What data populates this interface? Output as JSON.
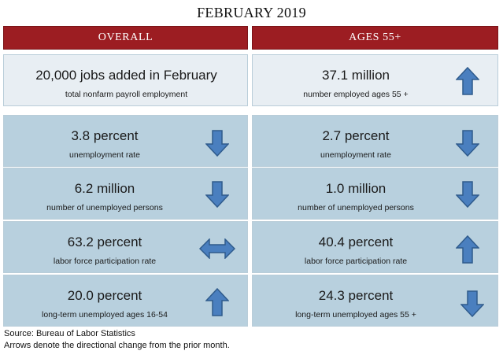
{
  "title": "FEBRUARY 2019",
  "headers": {
    "overall": "OVERALL",
    "ages55": "AGES 55+"
  },
  "colors": {
    "header_red": "#9c1d22",
    "arrow_blue": "#4a7fbf",
    "arrow_stroke": "#2f5b8c",
    "card_light": "#e8eef3",
    "card_blue": "#b8d0de"
  },
  "rows": [
    {
      "overall": {
        "value": "20,000 jobs added in February",
        "label": "total nonfarm payroll employment",
        "arrow": "none"
      },
      "ages55": {
        "value": "37.1 million",
        "label": "number employed ages 55 +",
        "arrow": "up-arrow-icon"
      }
    },
    {
      "overall": {
        "value": "3.8 percent",
        "label": "unemployment rate",
        "arrow": "down-arrow-icon"
      },
      "ages55": {
        "value": "2.7 percent",
        "label": "unemployment rate",
        "arrow": "down-arrow-icon"
      }
    },
    {
      "overall": {
        "value": "6.2 million",
        "label": "number of unemployed persons",
        "arrow": "down-arrow-icon"
      },
      "ages55": {
        "value": "1.0 million",
        "label": "number of unemployed persons",
        "arrow": "down-arrow-icon"
      }
    },
    {
      "overall": {
        "value": "63.2 percent",
        "label": "labor force participation rate",
        "arrow": "left-right-arrow-icon"
      },
      "ages55": {
        "value": "40.4 percent",
        "label": "labor force participation rate",
        "arrow": "up-arrow-icon"
      }
    },
    {
      "overall": {
        "value": "20.0 percent",
        "label": "long-term unemployed ages 16-54",
        "arrow": "up-arrow-icon"
      },
      "ages55": {
        "value": "24.3 percent",
        "label": "long-term unemployed ages 55 +",
        "arrow": "down-arrow-icon"
      }
    }
  ],
  "footer": {
    "source": "Source: Bureau of Labor Statistics",
    "note": "Arrows denote the directional change from the prior month."
  }
}
